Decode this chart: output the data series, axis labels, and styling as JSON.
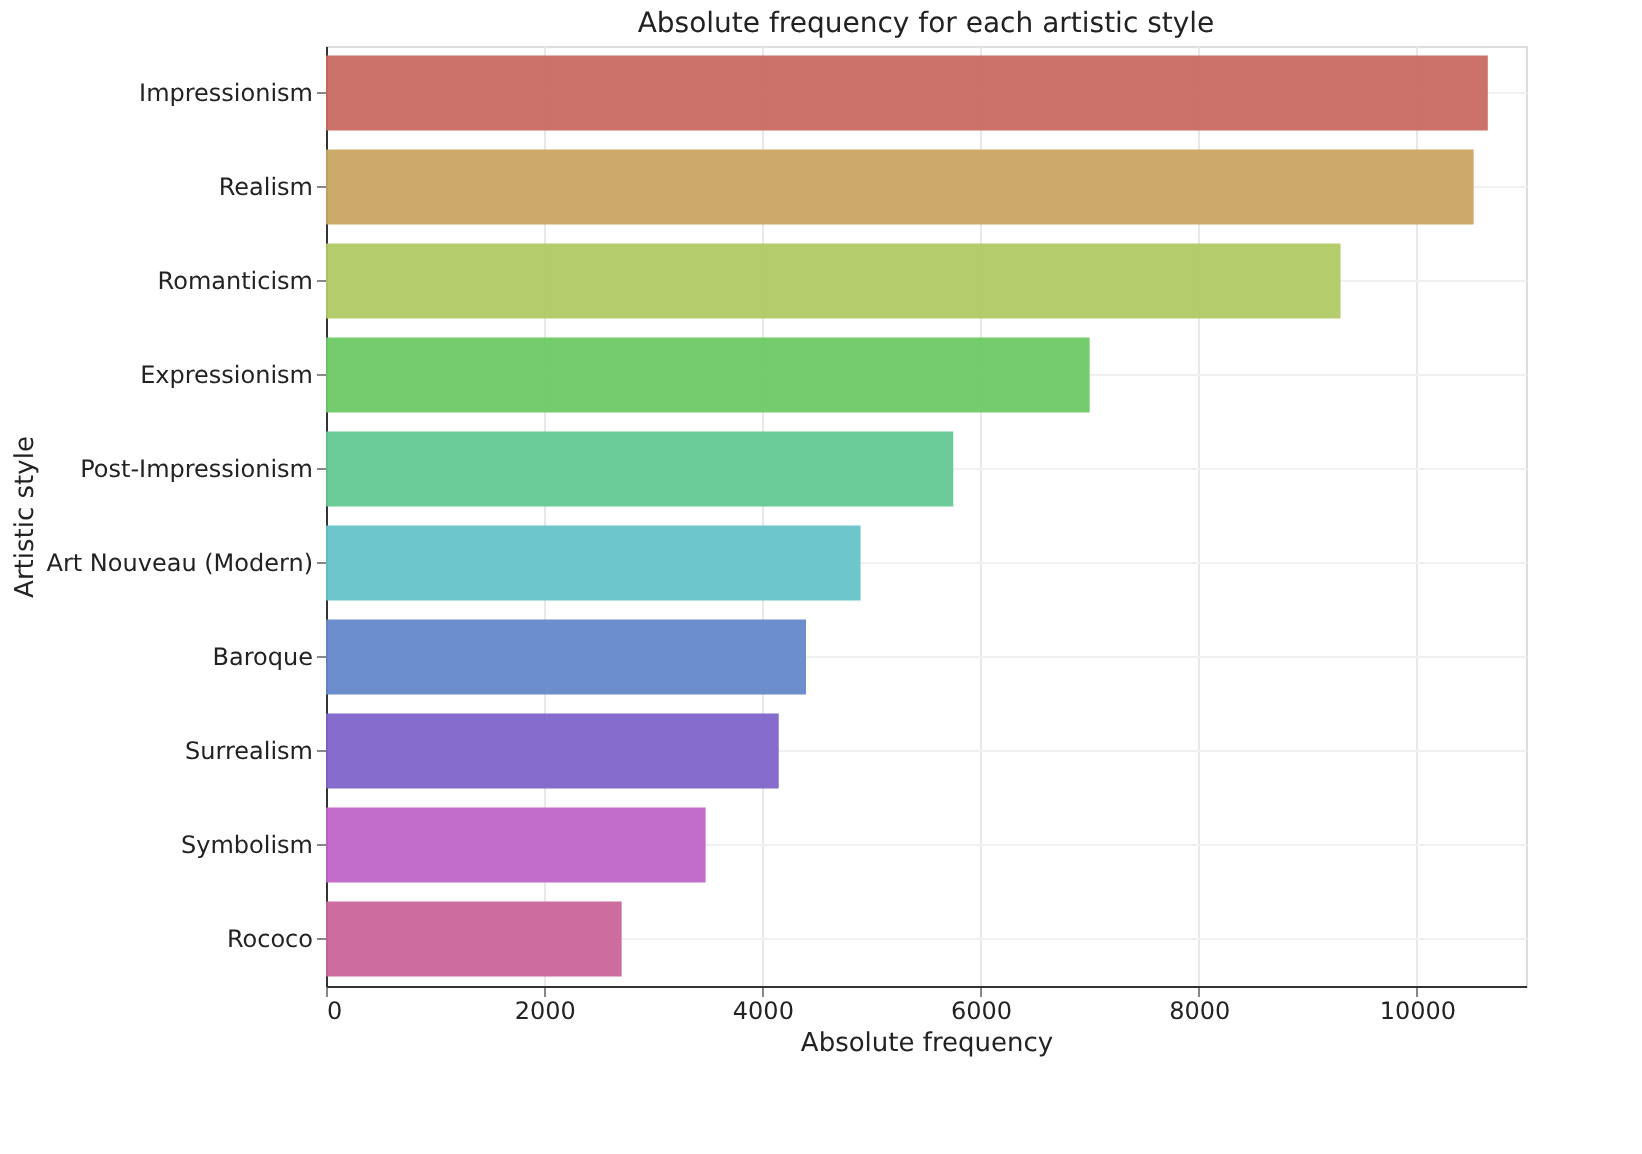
{
  "chart_data": {
    "type": "bar",
    "orientation": "horizontal",
    "title": "Absolute frequency for each artistic style",
    "xlabel": "Absolute frequency",
    "ylabel": "Artistic style",
    "categories": [
      "Impressionism",
      "Realism",
      "Romanticism",
      "Expressionism",
      "Post-Impressionism",
      "Art Nouveau (Modern)",
      "Baroque",
      "Surrealism",
      "Symbolism",
      "Rococo"
    ],
    "values": [
      10650,
      10520,
      9300,
      7000,
      5750,
      4900,
      4400,
      4150,
      3480,
      2710
    ],
    "colors": [
      "#c96a63",
      "#c9a561",
      "#b0c964",
      "#6dc964",
      "#64c994",
      "#64c3c9",
      "#6488c9",
      "#8064c9",
      "#bf64c9",
      "#c9649a"
    ],
    "xlim": [
      0,
      11000
    ],
    "xticks": [
      0,
      2000,
      4000,
      6000,
      8000,
      10000
    ],
    "grid": true
  }
}
